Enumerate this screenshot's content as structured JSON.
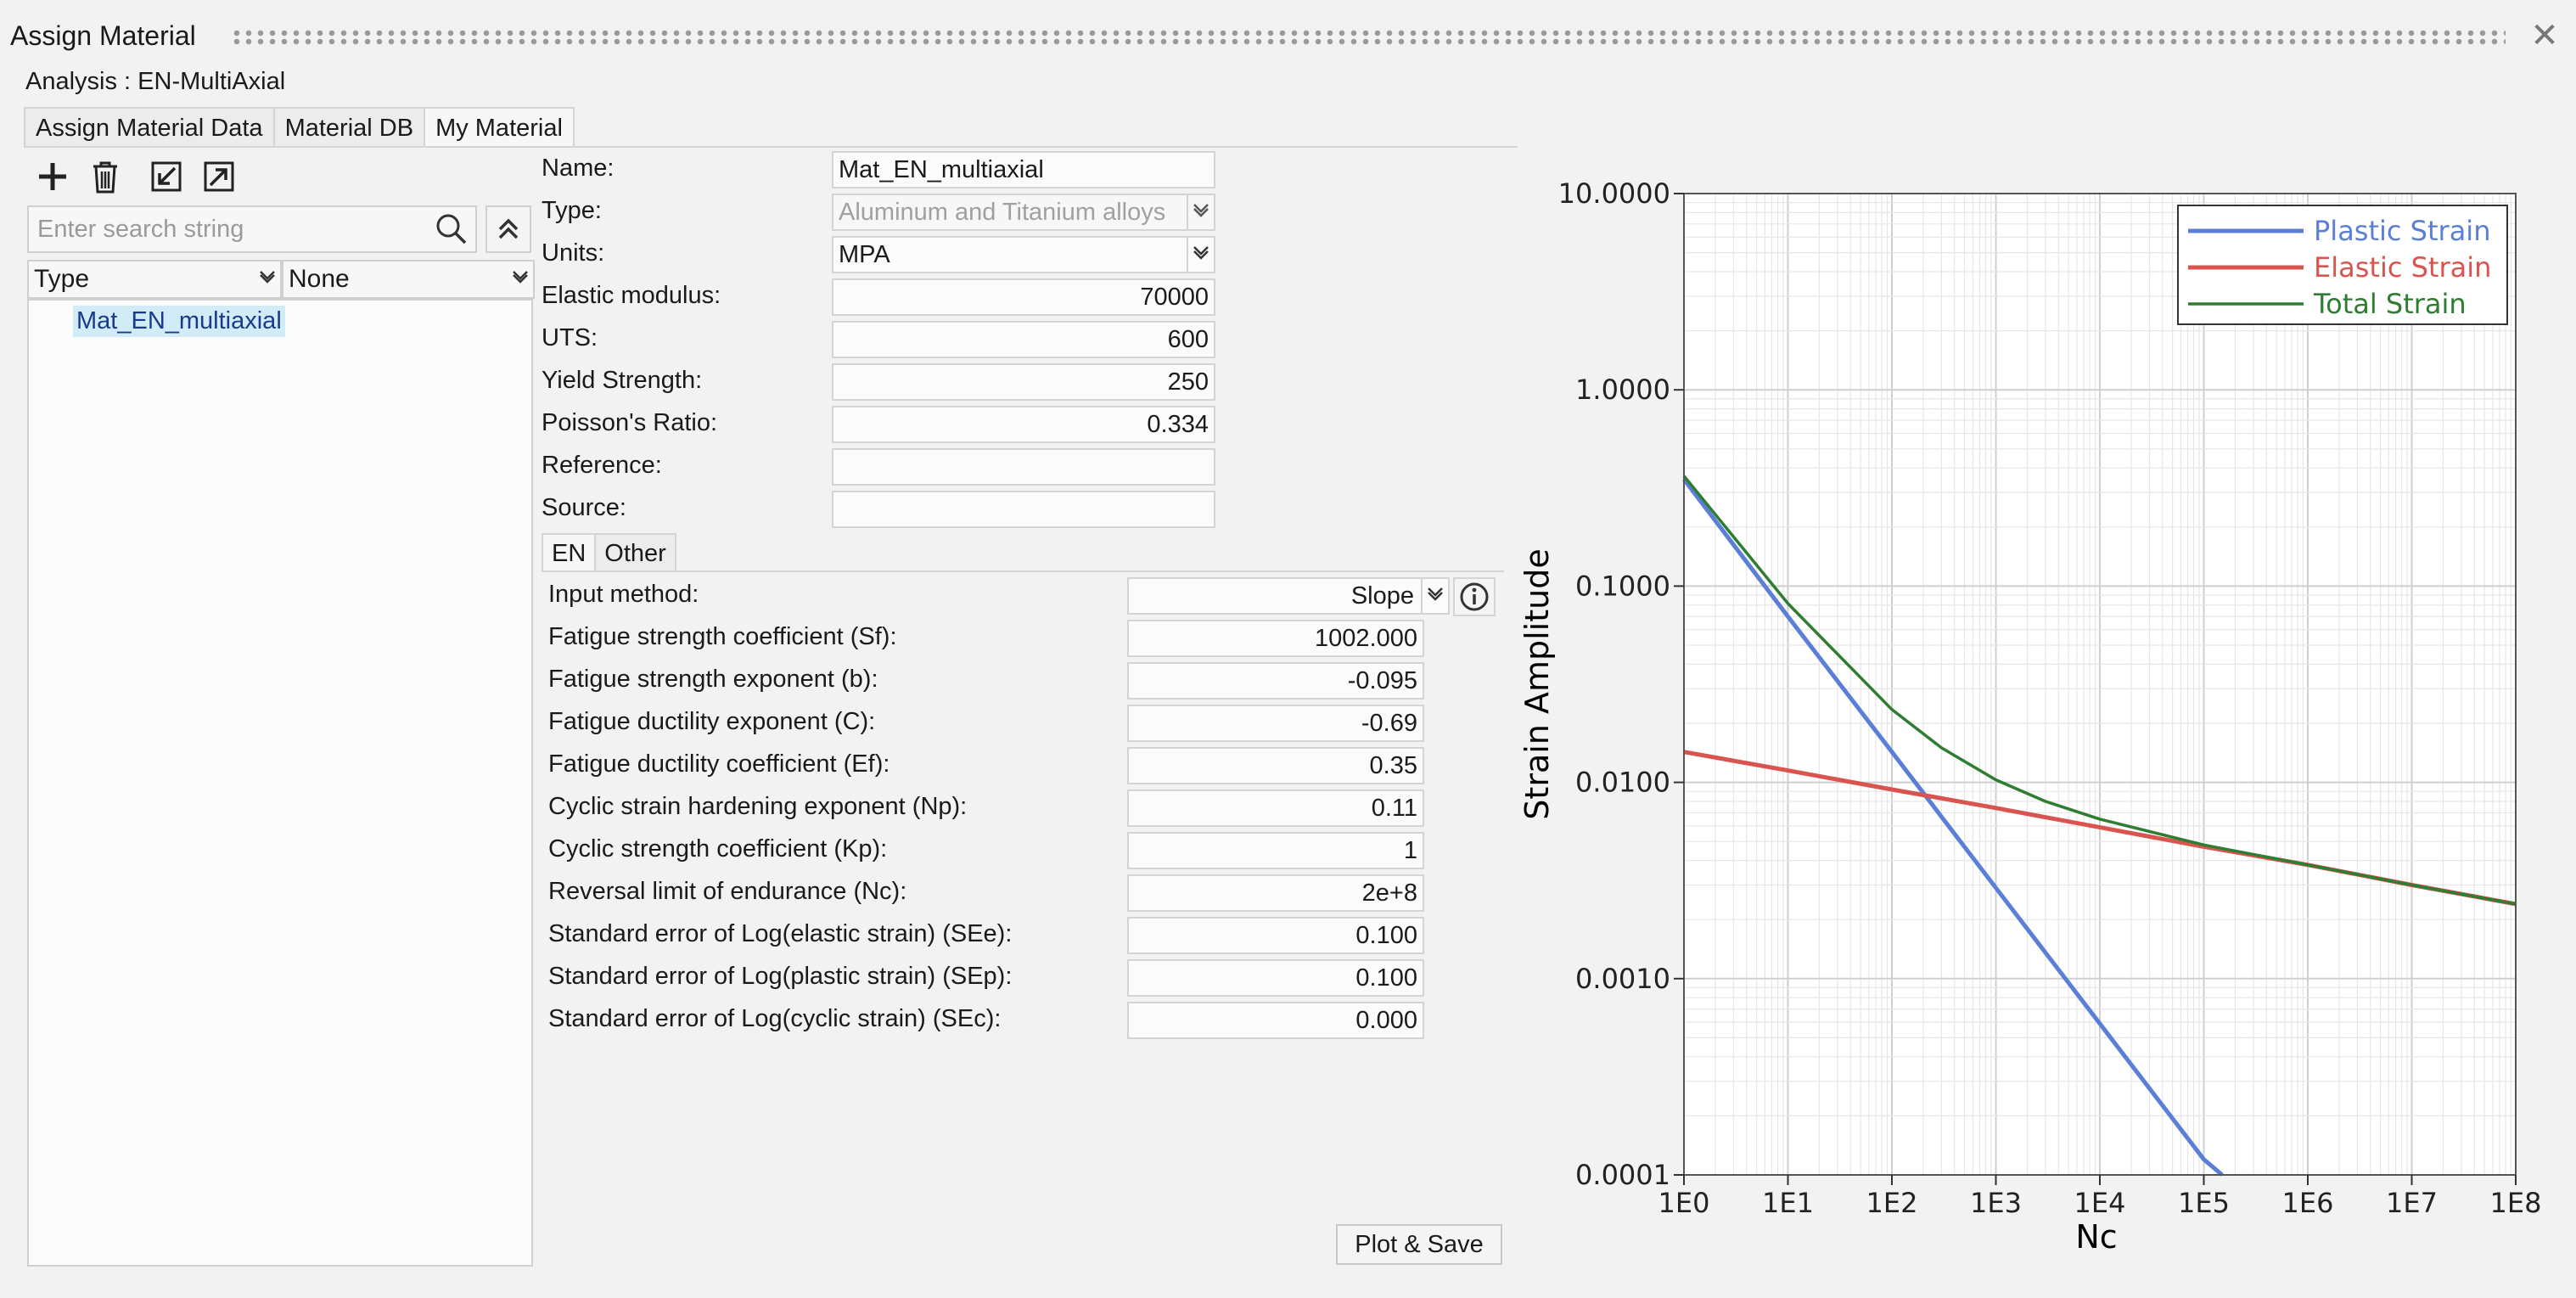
{
  "window": {
    "title": "Assign Material"
  },
  "analysis_label": "Analysis : EN-MultiAxial",
  "tabs": [
    {
      "label": "Assign Material Data"
    },
    {
      "label": "Material DB"
    },
    {
      "label": "My Material"
    }
  ],
  "toolbar": {
    "icons": [
      "plus-icon",
      "trash-icon",
      "import-icon",
      "export-icon"
    ]
  },
  "search": {
    "placeholder": "Enter search string"
  },
  "filters": {
    "type_label": "Type",
    "group_label": "None"
  },
  "tree": {
    "items": [
      "Mat_EN_multiaxial"
    ]
  },
  "material": {
    "name_label": "Name:",
    "name": "Mat_EN_multiaxial",
    "type_label": "Type:",
    "type": "Aluminum and Titanium alloys",
    "units_label": "Units:",
    "units": "MPA",
    "elastic_modulus_label": "Elastic modulus:",
    "elastic_modulus": "70000",
    "uts_label": "UTS:",
    "uts": "600",
    "yield_label": "Yield Strength:",
    "yield": "250",
    "poisson_label": "Poisson's Ratio:",
    "poisson": "0.334",
    "reference_label": "Reference:",
    "reference": "",
    "source_label": "Source:",
    "source": ""
  },
  "subtabs": [
    {
      "label": "EN"
    },
    {
      "label": "Other"
    }
  ],
  "en": {
    "input_method_label": "Input method:",
    "input_method": "Slope",
    "rows": [
      {
        "label": "Fatigue strength coefficient (Sf):",
        "value": "1002.000"
      },
      {
        "label": "Fatigue strength exponent (b):",
        "value": "-0.095"
      },
      {
        "label": "Fatigue ductility exponent (C):",
        "value": "-0.69"
      },
      {
        "label": "Fatigue ductility coefficient (Ef):",
        "value": "0.35"
      },
      {
        "label": "Cyclic strain hardening exponent (Np):",
        "value": "0.11"
      },
      {
        "label": "Cyclic strength coefficient (Kp):",
        "value": "1"
      },
      {
        "label": "Reversal limit of endurance (Nc):",
        "value": "2e+8"
      },
      {
        "label": "Standard error of Log(elastic strain) (SEe):",
        "value": "0.100"
      },
      {
        "label": "Standard error of Log(plastic strain) (SEp):",
        "value": "0.100"
      },
      {
        "label": "Standard error of Log(cyclic strain) (SEc):",
        "value": "0.000"
      }
    ]
  },
  "plot_button": "Plot & Save",
  "chart_data": {
    "type": "line",
    "xlabel": "Nc",
    "ylabel": "Strain Amplitude",
    "x_scale": "log",
    "y_scale": "log",
    "xlim": [
      1,
      100000000
    ],
    "ylim": [
      0.0001,
      10
    ],
    "x_tick_labels": [
      "1E0",
      "1E1",
      "1E2",
      "1E3",
      "1E4",
      "1E5",
      "1E6",
      "1E7",
      "1E8"
    ],
    "y_tick_labels": [
      "10.0000",
      "1.0000",
      "0.1000",
      "0.0100",
      "0.0010",
      "0.0001"
    ],
    "grid": true,
    "legend_position": "top-right",
    "series": [
      {
        "name": "Plastic Strain",
        "color": "#5b7fd6",
        "x": [
          1,
          10,
          100,
          1000,
          10000,
          100000,
          150000
        ],
        "y": [
          0.35,
          0.07,
          0.0143,
          0.0029,
          0.00059,
          0.00012,
          0.0001
        ]
      },
      {
        "name": "Elastic Strain",
        "color": "#d9534f",
        "x": [
          1,
          10,
          100,
          1000,
          10000,
          100000,
          1000000,
          10000000,
          100000000
        ],
        "y": [
          0.0143,
          0.0115,
          0.0092,
          0.0074,
          0.0059,
          0.0047,
          0.0038,
          0.003,
          0.0024
        ]
      },
      {
        "name": "Total Strain",
        "color": "#2e7d32",
        "x": [
          1,
          10,
          100,
          300,
          1000,
          3000,
          10000,
          100000,
          1000000,
          10000000,
          100000000
        ],
        "y": [
          0.364,
          0.0815,
          0.0235,
          0.015,
          0.0103,
          0.008,
          0.0065,
          0.0048,
          0.0038,
          0.003,
          0.0024
        ]
      }
    ]
  }
}
